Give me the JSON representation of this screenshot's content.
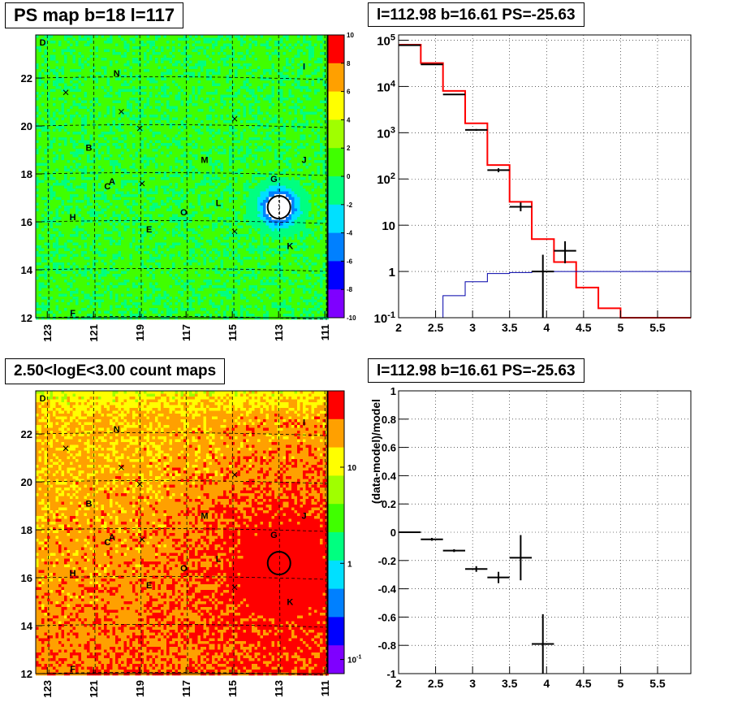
{
  "titles": {
    "ps_map": "PS map b=18 l=117",
    "spectrum": "l=112.98 b=16.61 PS=-25.63",
    "count_map": "2.50<logE<3.00 count maps",
    "residual": "l=112.98 b=16.61 PS=-25.63"
  },
  "chart_data": [
    {
      "type": "heatmap",
      "title": "PS map b=18 l=117",
      "x_ticks": [
        "123",
        "121",
        "119",
        "117",
        "115",
        "113",
        "111"
      ],
      "y_ticks": [
        "12",
        "14",
        "16",
        "18",
        "20",
        "22"
      ],
      "xlim": [
        123.5,
        110.9
      ],
      "ylim": [
        12,
        23.8
      ],
      "colorbar_ticks": [
        "10",
        "8",
        "6",
        "4",
        "2",
        "0",
        "-2",
        "-4",
        "-6",
        "-8",
        "-10"
      ],
      "colorbar_range": [
        -10,
        10
      ],
      "colormap": [
        "#7f00ff",
        "#0000ff",
        "#0080ff",
        "#00e0ff",
        "#00ff80",
        "#40ff00",
        "#a0ff00",
        "#ffff00",
        "#ffa000",
        "#ff0000"
      ],
      "source_labels": [
        {
          "text": "D",
          "l": 123.2,
          "b": 23.5
        },
        {
          "text": "N",
          "l": 120.0,
          "b": 22.2
        },
        {
          "text": "I",
          "l": 111.9,
          "b": 22.5
        },
        {
          "text": "B",
          "l": 121.2,
          "b": 19.1
        },
        {
          "text": "M",
          "l": 116.2,
          "b": 18.6
        },
        {
          "text": "J",
          "l": 111.9,
          "b": 18.6
        },
        {
          "text": "G",
          "l": 113.2,
          "b": 17.8
        },
        {
          "text": "A",
          "l": 120.2,
          "b": 17.7
        },
        {
          "text": "C",
          "l": 120.4,
          "b": 17.5
        },
        {
          "text": "L",
          "l": 115.6,
          "b": 16.8
        },
        {
          "text": "O",
          "l": 117.1,
          "b": 16.4
        },
        {
          "text": "H",
          "l": 121.9,
          "b": 16.2
        },
        {
          "text": "E",
          "l": 118.6,
          "b": 15.7
        },
        {
          "text": "K",
          "l": 112.5,
          "b": 15.0
        },
        {
          "text": "F",
          "l": 121.9,
          "b": 12.2
        }
      ],
      "cross_markers": [
        {
          "l": 122.2,
          "b": 21.4
        },
        {
          "l": 119.8,
          "b": 20.6
        },
        {
          "l": 119.0,
          "b": 19.9
        },
        {
          "l": 118.9,
          "b": 17.6
        },
        {
          "l": 114.9,
          "b": 20.3
        },
        {
          "l": 114.9,
          "b": 15.6
        }
      ],
      "ps_source": {
        "l": 112.98,
        "b": 16.61,
        "value": -25.63
      },
      "bright_region": {
        "l": 112.98,
        "b": 16.61,
        "value": -9
      }
    },
    {
      "type": "line",
      "title": "l=112.98 b=16.61 PS=-25.63",
      "x_ticks": [
        "2",
        "2.5",
        "3",
        "3.5",
        "4",
        "4.5",
        "5",
        "5.5"
      ],
      "xlim": [
        2,
        5.95
      ],
      "ylim": [
        0.1,
        130000
      ],
      "yscale": "log",
      "y_ticks": [
        {
          "mant": "10",
          "exp": "-1"
        },
        {
          "mant": "1",
          "exp": ""
        },
        {
          "mant": "10",
          "exp": ""
        },
        {
          "mant": "10",
          "exp": "2"
        },
        {
          "mant": "10",
          "exp": "3"
        },
        {
          "mant": "10",
          "exp": "4"
        },
        {
          "mant": "10",
          "exp": "5"
        }
      ],
      "grid": true,
      "series": [
        {
          "color": "#ff0000",
          "style": "step",
          "edges": [
            2.0,
            2.3,
            2.6,
            2.9,
            3.2,
            3.5,
            3.8,
            4.1,
            4.4,
            4.7,
            5.0,
            5.3,
            5.95
          ],
          "values": [
            80000,
            32000,
            8000,
            1600,
            200,
            32,
            5,
            1.6,
            0.45,
            0.16,
            0.1,
            0.1
          ]
        },
        {
          "color": "#0000aa",
          "style": "step",
          "edges": [
            2.3,
            2.6,
            2.9,
            3.2,
            3.5,
            3.8,
            4.1,
            4.4,
            5.95
          ],
          "values": [
            0.08,
            0.3,
            0.6,
            0.9,
            0.95,
            1.0,
            1.0,
            1.0
          ]
        },
        {
          "color": "#000000",
          "style": "errorbar",
          "points": [
            {
              "x": 2.15,
              "y": 78000,
              "xerr": 0.15,
              "ylo": 77500,
              "yhi": 78500
            },
            {
              "x": 2.45,
              "y": 30000,
              "xerr": 0.15,
              "ylo": 29800,
              "yhi": 30200
            },
            {
              "x": 2.75,
              "y": 6700,
              "xerr": 0.15,
              "ylo": 6600,
              "yhi": 6800
            },
            {
              "x": 3.05,
              "y": 1150,
              "xerr": 0.15,
              "ylo": 1100,
              "yhi": 1200
            },
            {
              "x": 3.35,
              "y": 155,
              "xerr": 0.15,
              "ylo": 140,
              "yhi": 170
            },
            {
              "x": 3.65,
              "y": 25,
              "xerr": 0.15,
              "ylo": 20,
              "yhi": 31
            },
            {
              "x": 3.95,
              "y": 1.0,
              "xerr": 0.15,
              "ylo": 0.05,
              "yhi": 2.3
            },
            {
              "x": 4.25,
              "y": 2.8,
              "xerr": 0.15,
              "ylo": 1.5,
              "yhi": 4.5
            }
          ]
        }
      ]
    },
    {
      "type": "heatmap",
      "title": "2.50<logE<3.00 count maps",
      "x_ticks": [
        "123",
        "121",
        "119",
        "117",
        "115",
        "113",
        "111"
      ],
      "y_ticks": [
        "12",
        "14",
        "16",
        "18",
        "20",
        "22"
      ],
      "xlim": [
        123.5,
        110.9
      ],
      "ylim": [
        12,
        23.8
      ],
      "colorbar_ticks": [
        {
          "mant": "10",
          "exp": ""
        },
        {
          "mant": "1",
          "exp": ""
        },
        {
          "mant": "10",
          "exp": "-1"
        }
      ],
      "colorbar_scale": "log",
      "colormap": [
        "#7f00ff",
        "#0000ff",
        "#0080ff",
        "#00e0ff",
        "#00ff80",
        "#40ff00",
        "#a0ff00",
        "#ffff00",
        "#ffa000",
        "#ff0000"
      ],
      "source_labels": [
        {
          "text": "D",
          "l": 123.2,
          "b": 23.5
        },
        {
          "text": "N",
          "l": 120.0,
          "b": 22.2
        },
        {
          "text": "I",
          "l": 111.9,
          "b": 22.5
        },
        {
          "text": "B",
          "l": 121.2,
          "b": 19.1
        },
        {
          "text": "M",
          "l": 116.2,
          "b": 18.6
        },
        {
          "text": "J",
          "l": 111.9,
          "b": 18.6
        },
        {
          "text": "G",
          "l": 113.2,
          "b": 17.8
        },
        {
          "text": "A",
          "l": 120.2,
          "b": 17.7
        },
        {
          "text": "C",
          "l": 120.4,
          "b": 17.5
        },
        {
          "text": "L",
          "l": 115.6,
          "b": 16.8
        },
        {
          "text": "O",
          "l": 117.1,
          "b": 16.4
        },
        {
          "text": "H",
          "l": 121.9,
          "b": 16.2
        },
        {
          "text": "E",
          "l": 118.6,
          "b": 15.7
        },
        {
          "text": "K",
          "l": 112.5,
          "b": 15.0
        },
        {
          "text": "F",
          "l": 121.9,
          "b": 12.2
        }
      ],
      "cross_markers": [
        {
          "l": 122.2,
          "b": 21.4
        },
        {
          "l": 119.8,
          "b": 20.6
        },
        {
          "l": 119.0,
          "b": 19.9
        },
        {
          "l": 118.9,
          "b": 17.6
        },
        {
          "l": 114.9,
          "b": 20.3
        },
        {
          "l": 114.9,
          "b": 15.6
        }
      ],
      "ps_source": {
        "l": 112.98,
        "b": 16.61
      }
    },
    {
      "type": "scatter",
      "title": "l=112.98 b=16.61 PS=-25.63",
      "ylabel": "(data-model)/model",
      "x_ticks": [
        "2",
        "2.5",
        "3",
        "3.5",
        "4",
        "4.5",
        "5",
        "5.5"
      ],
      "y_ticks": [
        "-1",
        "-0.8",
        "-0.6",
        "-0.4",
        "-0.2",
        "0",
        "0.2",
        "0.4",
        "0.6",
        "0.8",
        "1"
      ],
      "xlim": [
        2,
        5.95
      ],
      "ylim": [
        -1,
        1
      ],
      "grid": true,
      "points": [
        {
          "x": 2.15,
          "y": 0.0,
          "xerr": 0.15,
          "yerr": 0.005
        },
        {
          "x": 2.45,
          "y": -0.05,
          "xerr": 0.15,
          "yerr": 0.01
        },
        {
          "x": 2.75,
          "y": -0.13,
          "xerr": 0.15,
          "yerr": 0.01
        },
        {
          "x": 3.05,
          "y": -0.26,
          "xerr": 0.15,
          "yerr": 0.02
        },
        {
          "x": 3.35,
          "y": -0.32,
          "xerr": 0.15,
          "yerr": 0.04
        },
        {
          "x": 3.65,
          "y": -0.18,
          "xerr": 0.15,
          "yerr": 0.16
        },
        {
          "x": 3.95,
          "y": -0.79,
          "xerr": 0.15,
          "yerr": 0.21
        }
      ]
    }
  ]
}
